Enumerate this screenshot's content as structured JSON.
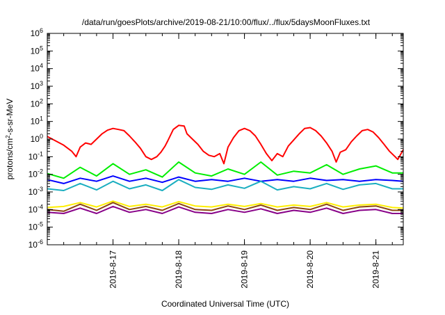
{
  "chart_data": {
    "type": "line",
    "title": "/data/run/goesPlots/archive/2019-08-21/10:00/flux/../flux/5daysMoonFluxes.txt",
    "xlabel": "Coordinated Universal Time (UTC)",
    "ylabel": {
      "prefix": "protons/cm",
      "sup": "2",
      "suffix": "-s-sr-MeV"
    },
    "y_scale": "log",
    "ylim_exponents": [
      -6,
      6
    ],
    "y_tick_labels": [
      {
        "base": "10",
        "exp": "-6"
      },
      {
        "base": "10",
        "exp": "-5"
      },
      {
        "base": "10",
        "exp": "-4"
      },
      {
        "base": "10",
        "exp": "-3"
      },
      {
        "base": "10",
        "exp": "-2"
      },
      {
        "base": "10",
        "exp": "-1"
      },
      {
        "base": "10",
        "exp": "0"
      },
      {
        "base": "10",
        "exp": "1"
      },
      {
        "base": "10",
        "exp": "2"
      },
      {
        "base": "10",
        "exp": "3"
      },
      {
        "base": "10",
        "exp": "4"
      },
      {
        "base": "10",
        "exp": "5"
      },
      {
        "base": "10",
        "exp": "6"
      }
    ],
    "xlim": [
      "2019-08-16 00:00",
      "2019-08-21 10:00"
    ],
    "x_ticks": [
      {
        "t": "2019-08-17",
        "label": "2019-8-17"
      },
      {
        "t": "2019-08-18",
        "label": "2019-8-18"
      },
      {
        "t": "2019-08-19",
        "label": "2019-8-19"
      },
      {
        "t": "2019-08-20",
        "label": "2019-8-20"
      },
      {
        "t": "2019-08-21",
        "label": "2019-8-21"
      }
    ],
    "grid": false,
    "legend": "none",
    "series": [
      {
        "color": "#ff0000",
        "points": [
          [
            "2019-08-16 00:00",
            1.4
          ],
          [
            "2019-08-16 03:00",
            0.8
          ],
          [
            "2019-08-16 06:00",
            0.45
          ],
          [
            "2019-08-16 09:00",
            0.2
          ],
          [
            "2019-08-16 10:30",
            0.1
          ],
          [
            "2019-08-16 12:00",
            0.35
          ],
          [
            "2019-08-16 14:00",
            0.6
          ],
          [
            "2019-08-16 16:00",
            0.5
          ],
          [
            "2019-08-16 18:00",
            1.0
          ],
          [
            "2019-08-16 20:00",
            2.0
          ],
          [
            "2019-08-16 22:00",
            3.2
          ],
          [
            "2019-08-17 00:00",
            4.0
          ],
          [
            "2019-08-17 02:00",
            3.5
          ],
          [
            "2019-08-17 04:00",
            3.0
          ],
          [
            "2019-08-17 06:00",
            1.5
          ],
          [
            "2019-08-17 08:00",
            0.7
          ],
          [
            "2019-08-17 10:00",
            0.3
          ],
          [
            "2019-08-17 12:00",
            0.1
          ],
          [
            "2019-08-17 14:00",
            0.07
          ],
          [
            "2019-08-17 16:00",
            0.1
          ],
          [
            "2019-08-17 17:30",
            0.18
          ],
          [
            "2019-08-17 19:00",
            0.4
          ],
          [
            "2019-08-17 20:00",
            0.8
          ],
          [
            "2019-08-17 22:00",
            3.5
          ],
          [
            "2019-08-18 00:00",
            6.0
          ],
          [
            "2019-08-18 02:00",
            5.5
          ],
          [
            "2019-08-18 03:00",
            2.0
          ],
          [
            "2019-08-18 05:00",
            1.0
          ],
          [
            "2019-08-18 07:00",
            0.5
          ],
          [
            "2019-08-18 09:00",
            0.2
          ],
          [
            "2019-08-18 11:00",
            0.12
          ],
          [
            "2019-08-18 13:00",
            0.1
          ],
          [
            "2019-08-18 15:00",
            0.15
          ],
          [
            "2019-08-18 16:30",
            0.04
          ],
          [
            "2019-08-18 18:00",
            0.35
          ],
          [
            "2019-08-18 20:00",
            1.2
          ],
          [
            "2019-08-18 22:00",
            3.0
          ],
          [
            "2019-08-19 00:00",
            4.0
          ],
          [
            "2019-08-19 02:00",
            3.0
          ],
          [
            "2019-08-19 04:00",
            1.5
          ],
          [
            "2019-08-19 06:00",
            0.5
          ],
          [
            "2019-08-19 08:00",
            0.15
          ],
          [
            "2019-08-19 10:00",
            0.06
          ],
          [
            "2019-08-19 12:00",
            0.15
          ],
          [
            "2019-08-19 14:00",
            0.1
          ],
          [
            "2019-08-19 16:00",
            0.4
          ],
          [
            "2019-08-19 18:00",
            0.9
          ],
          [
            "2019-08-19 20:00",
            2.0
          ],
          [
            "2019-08-19 22:00",
            4.0
          ],
          [
            "2019-08-20 00:00",
            4.5
          ],
          [
            "2019-08-20 02:00",
            3.0
          ],
          [
            "2019-08-20 04:00",
            1.5
          ],
          [
            "2019-08-20 06:00",
            0.6
          ],
          [
            "2019-08-20 08:00",
            0.2
          ],
          [
            "2019-08-20 09:30",
            0.05
          ],
          [
            "2019-08-20 11:00",
            0.18
          ],
          [
            "2019-08-20 13:00",
            0.25
          ],
          [
            "2019-08-20 15:00",
            0.7
          ],
          [
            "2019-08-20 17:00",
            1.5
          ],
          [
            "2019-08-20 19:00",
            3.0
          ],
          [
            "2019-08-20 21:00",
            3.5
          ],
          [
            "2019-08-20 23:00",
            2.5
          ],
          [
            "2019-08-21 01:00",
            1.2
          ],
          [
            "2019-08-21 03:00",
            0.5
          ],
          [
            "2019-08-21 05:00",
            0.2
          ],
          [
            "2019-08-21 07:00",
            0.1
          ],
          [
            "2019-08-21 08:00",
            0.07
          ],
          [
            "2019-08-21 10:00",
            0.25
          ]
        ]
      },
      {
        "color": "#00ee00",
        "points": [
          [
            "2019-08-16 00:00",
            0.011
          ],
          [
            "2019-08-16 06:00",
            0.006
          ],
          [
            "2019-08-16 12:00",
            0.025
          ],
          [
            "2019-08-16 18:00",
            0.008
          ],
          [
            "2019-08-17 00:00",
            0.04
          ],
          [
            "2019-08-17 06:00",
            0.01
          ],
          [
            "2019-08-17 12:00",
            0.018
          ],
          [
            "2019-08-17 18:00",
            0.007
          ],
          [
            "2019-08-18 00:00",
            0.05
          ],
          [
            "2019-08-18 06:00",
            0.012
          ],
          [
            "2019-08-18 12:00",
            0.008
          ],
          [
            "2019-08-18 18:00",
            0.02
          ],
          [
            "2019-08-19 00:00",
            0.01
          ],
          [
            "2019-08-19 06:00",
            0.05
          ],
          [
            "2019-08-19 12:00",
            0.009
          ],
          [
            "2019-08-19 18:00",
            0.015
          ],
          [
            "2019-08-20 00:00",
            0.012
          ],
          [
            "2019-08-20 06:00",
            0.035
          ],
          [
            "2019-08-20 12:00",
            0.01
          ],
          [
            "2019-08-20 18:00",
            0.02
          ],
          [
            "2019-08-21 00:00",
            0.03
          ],
          [
            "2019-08-21 06:00",
            0.012
          ],
          [
            "2019-08-21 10:00",
            0.012
          ]
        ]
      },
      {
        "color": "#0000ff",
        "points": [
          [
            "2019-08-16 00:00",
            0.005
          ],
          [
            "2019-08-16 06:00",
            0.003
          ],
          [
            "2019-08-16 12:00",
            0.006
          ],
          [
            "2019-08-16 18:00",
            0.004
          ],
          [
            "2019-08-17 00:00",
            0.008
          ],
          [
            "2019-08-17 06:00",
            0.004
          ],
          [
            "2019-08-17 12:00",
            0.006
          ],
          [
            "2019-08-17 18:00",
            0.0035
          ],
          [
            "2019-08-18 00:00",
            0.007
          ],
          [
            "2019-08-18 06:00",
            0.004
          ],
          [
            "2019-08-18 12:00",
            0.005
          ],
          [
            "2019-08-18 18:00",
            0.004
          ],
          [
            "2019-08-19 00:00",
            0.006
          ],
          [
            "2019-08-19 06:00",
            0.004
          ],
          [
            "2019-08-19 12:00",
            0.005
          ],
          [
            "2019-08-19 18:00",
            0.004
          ],
          [
            "2019-08-20 00:00",
            0.006
          ],
          [
            "2019-08-20 06:00",
            0.0045
          ],
          [
            "2019-08-20 12:00",
            0.005
          ],
          [
            "2019-08-20 18:00",
            0.004
          ],
          [
            "2019-08-21 00:00",
            0.005
          ],
          [
            "2019-08-21 06:00",
            0.0045
          ],
          [
            "2019-08-21 10:00",
            0.004
          ]
        ]
      },
      {
        "color": "#1aaec0",
        "points": [
          [
            "2019-08-16 00:00",
            0.0015
          ],
          [
            "2019-08-16 06:00",
            0.0012
          ],
          [
            "2019-08-16 12:00",
            0.003
          ],
          [
            "2019-08-16 18:00",
            0.0013
          ],
          [
            "2019-08-17 00:00",
            0.004
          ],
          [
            "2019-08-17 06:00",
            0.0015
          ],
          [
            "2019-08-17 12:00",
            0.0025
          ],
          [
            "2019-08-17 18:00",
            0.0012
          ],
          [
            "2019-08-18 00:00",
            0.005
          ],
          [
            "2019-08-18 06:00",
            0.0018
          ],
          [
            "2019-08-18 12:00",
            0.0014
          ],
          [
            "2019-08-18 18:00",
            0.0025
          ],
          [
            "2019-08-19 00:00",
            0.0016
          ],
          [
            "2019-08-19 06:00",
            0.004
          ],
          [
            "2019-08-19 12:00",
            0.0013
          ],
          [
            "2019-08-19 18:00",
            0.002
          ],
          [
            "2019-08-20 00:00",
            0.0015
          ],
          [
            "2019-08-20 06:00",
            0.003
          ],
          [
            "2019-08-20 12:00",
            0.0014
          ],
          [
            "2019-08-20 18:00",
            0.0025
          ],
          [
            "2019-08-21 00:00",
            0.003
          ],
          [
            "2019-08-21 06:00",
            0.0015
          ],
          [
            "2019-08-21 10:00",
            0.0015
          ]
        ]
      },
      {
        "color": "#ffee00",
        "points": [
          [
            "2019-08-16 00:00",
            0.00013
          ],
          [
            "2019-08-16 06:00",
            0.00015
          ],
          [
            "2019-08-16 12:00",
            0.00025
          ],
          [
            "2019-08-16 18:00",
            0.00014
          ],
          [
            "2019-08-17 00:00",
            0.0003
          ],
          [
            "2019-08-17 06:00",
            0.00015
          ],
          [
            "2019-08-17 12:00",
            0.0002
          ],
          [
            "2019-08-17 18:00",
            0.00014
          ],
          [
            "2019-08-18 00:00",
            0.00028
          ],
          [
            "2019-08-18 06:00",
            0.00016
          ],
          [
            "2019-08-18 12:00",
            0.00014
          ],
          [
            "2019-08-18 18:00",
            0.0002
          ],
          [
            "2019-08-19 00:00",
            0.00015
          ],
          [
            "2019-08-19 06:00",
            0.00022
          ],
          [
            "2019-08-19 12:00",
            0.00014
          ],
          [
            "2019-08-19 18:00",
            0.00018
          ],
          [
            "2019-08-20 00:00",
            0.00015
          ],
          [
            "2019-08-20 06:00",
            0.00025
          ],
          [
            "2019-08-20 12:00",
            0.00014
          ],
          [
            "2019-08-20 18:00",
            0.00018
          ],
          [
            "2019-08-21 00:00",
            0.0002
          ],
          [
            "2019-08-21 06:00",
            0.00013
          ],
          [
            "2019-08-21 10:00",
            0.00012
          ]
        ]
      },
      {
        "color": "#8b4513",
        "points": [
          [
            "2019-08-16 00:00",
            0.0001
          ],
          [
            "2019-08-16 06:00",
            8e-05
          ],
          [
            "2019-08-16 12:00",
            0.0002
          ],
          [
            "2019-08-16 18:00",
            9e-05
          ],
          [
            "2019-08-17 00:00",
            0.00025
          ],
          [
            "2019-08-17 06:00",
            0.0001
          ],
          [
            "2019-08-17 12:00",
            0.00015
          ],
          [
            "2019-08-17 18:00",
            9e-05
          ],
          [
            "2019-08-18 00:00",
            0.00022
          ],
          [
            "2019-08-18 06:00",
            0.0001
          ],
          [
            "2019-08-18 12:00",
            9e-05
          ],
          [
            "2019-08-18 18:00",
            0.00016
          ],
          [
            "2019-08-19 00:00",
            0.0001
          ],
          [
            "2019-08-19 06:00",
            0.00018
          ],
          [
            "2019-08-19 12:00",
            9e-05
          ],
          [
            "2019-08-19 18:00",
            0.00013
          ],
          [
            "2019-08-20 00:00",
            0.0001
          ],
          [
            "2019-08-20 06:00",
            0.0002
          ],
          [
            "2019-08-20 12:00",
            9e-05
          ],
          [
            "2019-08-20 18:00",
            0.00014
          ],
          [
            "2019-08-21 00:00",
            0.00016
          ],
          [
            "2019-08-21 06:00",
            9e-05
          ],
          [
            "2019-08-21 10:00",
            9e-05
          ]
        ]
      },
      {
        "color": "#880088",
        "points": [
          [
            "2019-08-16 00:00",
            7e-05
          ],
          [
            "2019-08-16 06:00",
            6e-05
          ],
          [
            "2019-08-16 12:00",
            0.00012
          ],
          [
            "2019-08-16 18:00",
            6e-05
          ],
          [
            "2019-08-17 00:00",
            0.00015
          ],
          [
            "2019-08-17 06:00",
            7e-05
          ],
          [
            "2019-08-17 12:00",
            0.0001
          ],
          [
            "2019-08-17 18:00",
            6e-05
          ],
          [
            "2019-08-18 00:00",
            0.00014
          ],
          [
            "2019-08-18 06:00",
            7e-05
          ],
          [
            "2019-08-18 12:00",
            6e-05
          ],
          [
            "2019-08-18 18:00",
            0.0001
          ],
          [
            "2019-08-19 00:00",
            7e-05
          ],
          [
            "2019-08-19 06:00",
            0.00011
          ],
          [
            "2019-08-19 12:00",
            6e-05
          ],
          [
            "2019-08-19 18:00",
            9e-05
          ],
          [
            "2019-08-20 00:00",
            7e-05
          ],
          [
            "2019-08-20 06:00",
            0.00012
          ],
          [
            "2019-08-20 12:00",
            6e-05
          ],
          [
            "2019-08-20 18:00",
            9e-05
          ],
          [
            "2019-08-21 00:00",
            0.0001
          ],
          [
            "2019-08-21 06:00",
            6e-05
          ],
          [
            "2019-08-21 10:00",
            6e-05
          ]
        ]
      }
    ]
  }
}
